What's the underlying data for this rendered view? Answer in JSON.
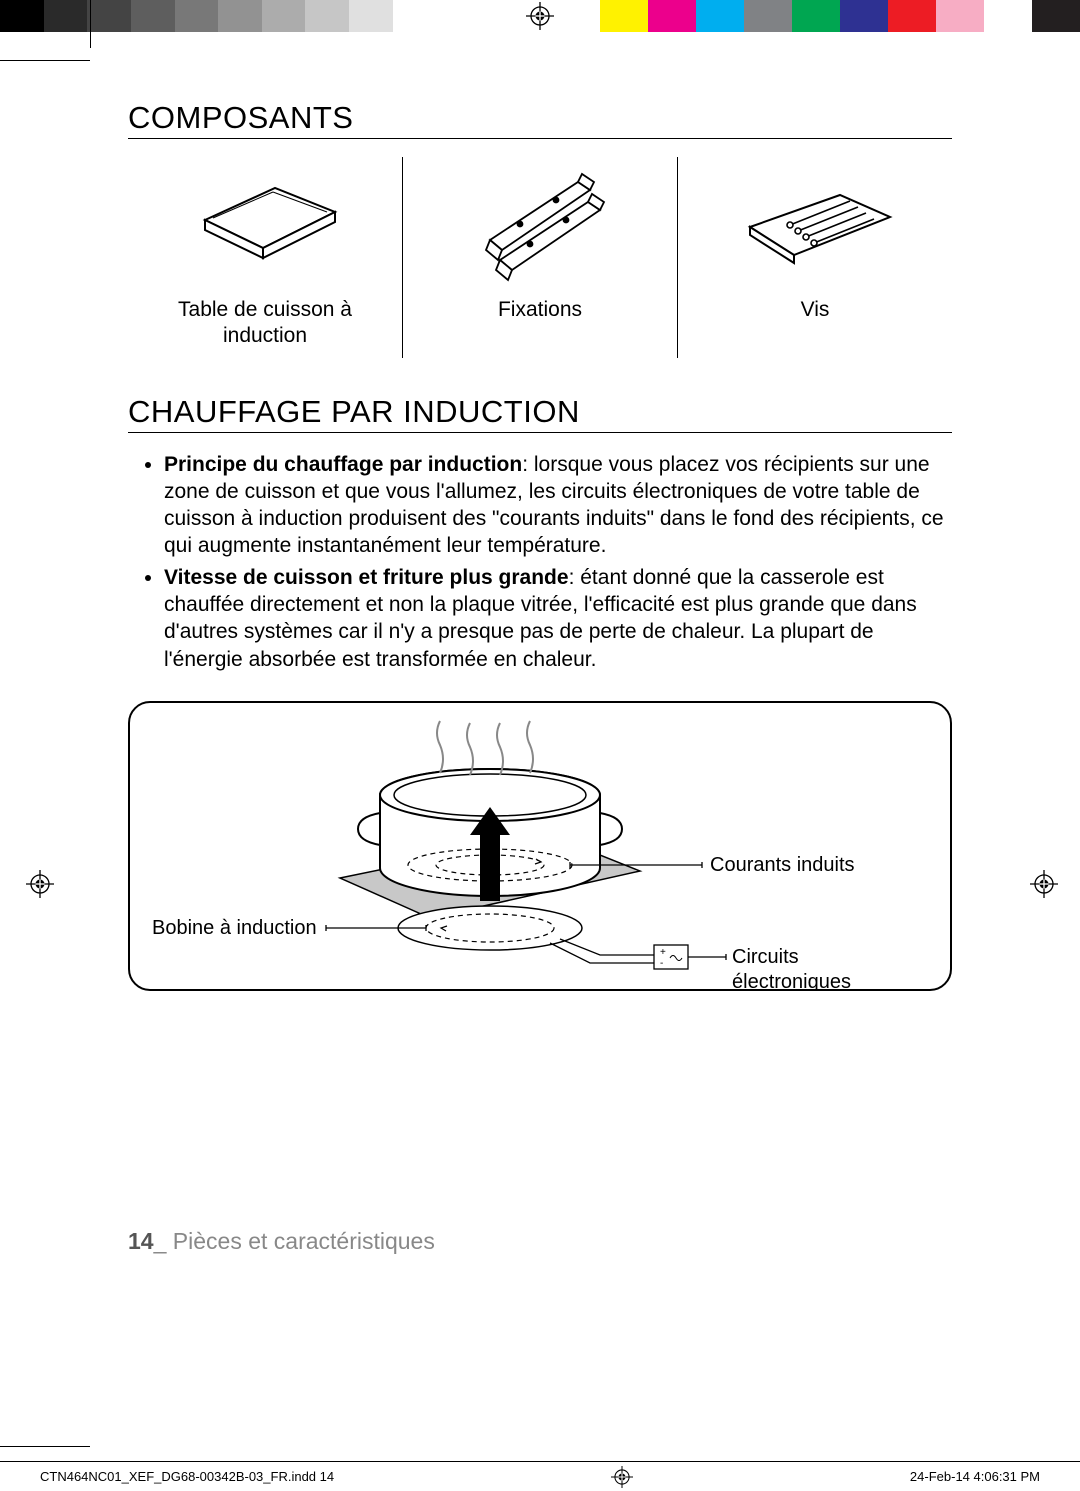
{
  "calibration": {
    "grayscale": [
      "#000000",
      "#2a2a2a",
      "#444444",
      "#5e5e5e",
      "#787878",
      "#929292",
      "#acacac",
      "#c6c6c6",
      "#e0e0e0",
      "#ffffff",
      "#ffffff"
    ],
    "colors": [
      "#fff200",
      "#ec008c",
      "#00aeef",
      "#808285",
      "#00a651",
      "#2e3192",
      "#ed1c24",
      "#f7adc4",
      "#ffffff",
      "#231f20"
    ]
  },
  "sections": {
    "composants": {
      "title": "COMPOSANTS",
      "items": [
        {
          "label": "Table de cuisson à induction"
        },
        {
          "label": "Fixations"
        },
        {
          "label": "Vis"
        }
      ]
    },
    "chauffage": {
      "title": "CHAUFFAGE PAR INDUCTION",
      "bullets": [
        {
          "lead": "Principe du chauffage par induction",
          "text": ": lorsque vous placez vos récipients sur une zone de cuisson et que vous l'allumez, les circuits électroniques de votre table de cuisson à induction produisent des \"courants induits\" dans le fond des récipients, ce qui augmente instantanément leur température."
        },
        {
          "lead": "Vitesse de cuisson et friture plus grande",
          "text": ": étant donné que la casserole est chauffée directement et non la plaque vitrée, l'efficacité est plus grande que dans d'autres systèmes car il n'y a presque pas de perte de chaleur. La plupart de l'énergie absorbée est transformée en chaleur."
        }
      ],
      "diagram": {
        "label_currents": "Courants induits",
        "label_coil": "Bobine à induction",
        "label_circuits": "Circuits électroniques"
      }
    }
  },
  "footer": {
    "page_number": "14",
    "separator": "_",
    "section": "Pièces et caractéristiques"
  },
  "slug": {
    "file": "CTN464NC01_XEF_DG68-00342B-03_FR.indd   14",
    "timestamp": "24-Feb-14   4:06:31 PM"
  }
}
